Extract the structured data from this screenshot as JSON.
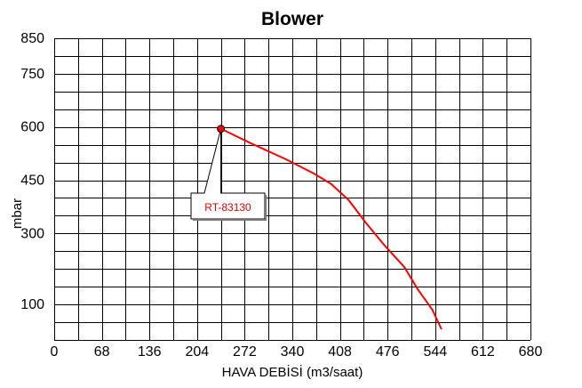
{
  "chart_data": {
    "type": "line",
    "title": "Blower",
    "xlabel": "HAVA DEBİSİ (m3/saat)",
    "ylabel": "mbar",
    "xlim": [
      0,
      680
    ],
    "ylim": [
      0,
      850
    ],
    "x_ticks": [
      0,
      68,
      136,
      204,
      272,
      340,
      408,
      476,
      544,
      612,
      680
    ],
    "x_tick_labels": [
      "0",
      "68",
      "136",
      "204",
      "272",
      "340",
      "408",
      "476",
      "544",
      "612",
      "680"
    ],
    "y_ticks": [
      100,
      300,
      450,
      600,
      750,
      850
    ],
    "y_tick_labels": [
      "100",
      "300",
      "450",
      "600",
      "750",
      "850"
    ],
    "grid": true,
    "series": [
      {
        "color": "#ff0000",
        "x": [
          238,
          280,
          330,
          370,
          395,
          420,
          445,
          470,
          500,
          520,
          540,
          553
        ],
        "y": [
          595,
          555,
          510,
          470,
          440,
          395,
          330,
          270,
          205,
          140,
          85,
          30
        ]
      }
    ],
    "annotations": [
      {
        "text": "RT-83130",
        "x": 238,
        "y": 595,
        "color": "#e00000"
      }
    ]
  }
}
